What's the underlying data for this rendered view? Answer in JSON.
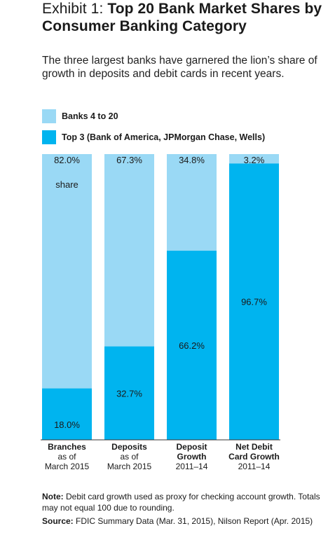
{
  "title_prefix": "Exhibit 1:",
  "title": "Top 20 Bank Market Shares by Consumer Banking Category",
  "subtitle": "The three largest banks have garnered the lion’s share of growth in deposits and debit cards in recent years.",
  "note_label": "Note:",
  "note_text": "Debit card growth used as proxy for checking account growth. Totals may not equal 100 due to rounding.",
  "source_label": "Source:",
  "source_text": "FDIC Summary Data (Mar. 31, 2015), Nilson Report (Apr. 2015)",
  "colors": {
    "light": "#9ad9f5",
    "dark": "#00b4ef"
  },
  "chart_data": {
    "type": "bar",
    "stacked": true,
    "categories": [
      [
        "Branches",
        "as of",
        "March 2015"
      ],
      [
        "Deposits",
        "as of",
        "March 2015"
      ],
      [
        "Deposit",
        "Growth",
        "2011–14"
      ],
      [
        "Net Debit",
        "Card Growth",
        "2011–14"
      ]
    ],
    "series": [
      {
        "name": "Top 3 (Bank of America, JPMorgan Chase, Wells)",
        "values": [
          18.0,
          32.7,
          66.2,
          96.7
        ],
        "labels": [
          "18.0%",
          "32.7%",
          "66.2%",
          "96.7%"
        ]
      },
      {
        "name": "Banks 4 to 20",
        "values": [
          82.0,
          67.3,
          34.8,
          3.2
        ],
        "labels": [
          "82.0%",
          "67.3%",
          "34.8%",
          "3.2%"
        ]
      }
    ],
    "first_bar_note": "share",
    "ylim": [
      0,
      100
    ],
    "legend": "top"
  }
}
